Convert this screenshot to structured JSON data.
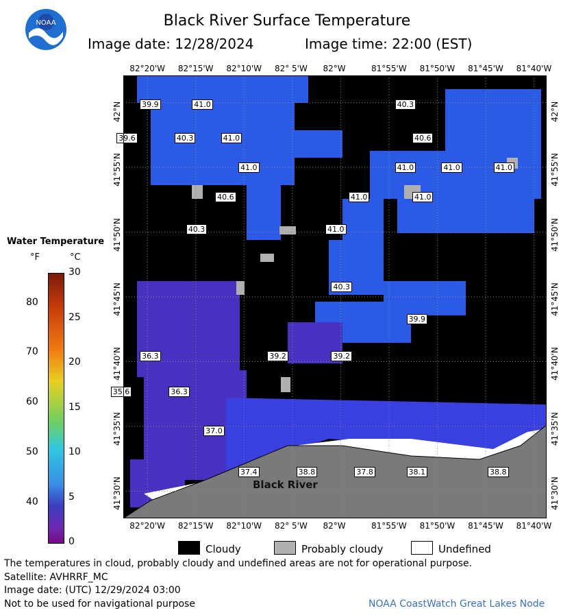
{
  "header": {
    "title": "Black River Surface Temperature",
    "image_date": "Image date: 12/28/2024",
    "image_time": "Image time: 22:00 (EST)",
    "logo_text": "NOAA"
  },
  "legend": {
    "title": "Water Temperature",
    "unit_f": "°F",
    "unit_c": "°C",
    "f_ticks": [
      "80",
      "70",
      "60",
      "50",
      "40"
    ],
    "c_ticks": [
      "30",
      "25",
      "20",
      "15",
      "10",
      "5",
      "0"
    ]
  },
  "map": {
    "lon_labels": [
      "82°20'W",
      "82°15'W",
      "82°10'W",
      "82° 5'W",
      "82°W",
      "81°55'W",
      "81°50'W",
      "81°45'W",
      "81°40'W"
    ],
    "lat_labels": [
      "42°N",
      "41°55'N",
      "41°50'N",
      "41°45'N",
      "41°40'N",
      "41°35'N",
      "41°30'N"
    ],
    "place_label": "Black River",
    "temperatures": [
      {
        "value": "39.9",
        "lon": -82.33,
        "lat": 41.998
      },
      {
        "value": "41.0",
        "lon": -82.24,
        "lat": 41.998
      },
      {
        "value": "40.3",
        "lon": -81.89,
        "lat": 41.998
      },
      {
        "value": "39.6",
        "lon": -82.37,
        "lat": 41.955
      },
      {
        "value": "40.3",
        "lon": -82.27,
        "lat": 41.955
      },
      {
        "value": "41.0",
        "lon": -82.19,
        "lat": 41.955
      },
      {
        "value": "40.6",
        "lon": -81.86,
        "lat": 41.955
      },
      {
        "value": "41.0",
        "lon": -82.16,
        "lat": 41.917
      },
      {
        "value": "41.0",
        "lon": -81.89,
        "lat": 41.917
      },
      {
        "value": "41.0",
        "lon": -81.81,
        "lat": 41.917
      },
      {
        "value": "41.0",
        "lon": -81.72,
        "lat": 41.917
      },
      {
        "value": "40.6",
        "lon": -82.2,
        "lat": 41.879
      },
      {
        "value": "41.0",
        "lon": -81.97,
        "lat": 41.879
      },
      {
        "value": "41.0",
        "lon": -81.86,
        "lat": 41.879
      },
      {
        "value": "40.3",
        "lon": -82.25,
        "lat": 41.837
      },
      {
        "value": "41.0",
        "lon": -82.01,
        "lat": 41.837
      },
      {
        "value": "40.3",
        "lon": -82.0,
        "lat": 41.763
      },
      {
        "value": "39.9",
        "lon": -81.87,
        "lat": 41.722
      },
      {
        "value": "36.3",
        "lon": -82.33,
        "lat": 41.674
      },
      {
        "value": "39.2",
        "lon": -82.11,
        "lat": 41.674
      },
      {
        "value": "39.2",
        "lon": -82.0,
        "lat": 41.674
      },
      {
        "value": "35.6",
        "lon": -82.38,
        "lat": 41.628
      },
      {
        "value": "36.3",
        "lon": -82.28,
        "lat": 41.628
      },
      {
        "value": "37.0",
        "lon": -82.22,
        "lat": 41.578
      },
      {
        "value": "37.4",
        "lon": -82.16,
        "lat": 41.525
      },
      {
        "value": "38.8",
        "lon": -82.06,
        "lat": 41.525
      },
      {
        "value": "37.8",
        "lon": -81.96,
        "lat": 41.525
      },
      {
        "value": "38.1",
        "lon": -81.87,
        "lat": 41.525
      },
      {
        "value": "38.8",
        "lon": -81.73,
        "lat": 41.525
      }
    ]
  },
  "key": {
    "cloudy": "Cloudy",
    "probably_cloudy": "Probably cloudy",
    "undefined": "Undefined"
  },
  "footer": {
    "disclaimer": "The temperatures in cloud, probably cloudy and undefined areas are not for operational purpose.",
    "satellite": "Satellite: AVHRRF_MC",
    "utc_date": "Image date: (UTC) 12/29/2024  03:00",
    "nav_warning": "Not to be used for navigational purpose",
    "credit": "NOAA CoastWatch Great Lakes Node"
  }
}
